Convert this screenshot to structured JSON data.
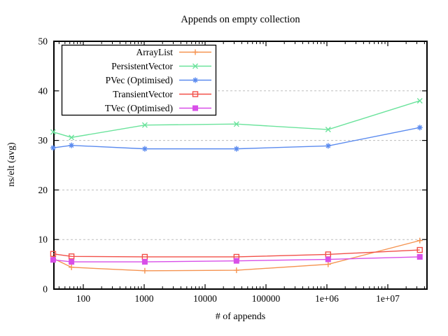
{
  "chart_data": {
    "type": "line",
    "title": "Appends on empty collection",
    "xlabel": "# of appends",
    "ylabel": "ns/elt (avg)",
    "x_scale": "log10",
    "xlim": [
      32,
      44000000
    ],
    "ylim": [
      0,
      50
    ],
    "grid": "horizontal-dashed",
    "grid_color": "#bdbdbd",
    "legend_position": "top-left",
    "x_major_ticks": [
      100,
      1000,
      10000,
      100000,
      1000000,
      10000000
    ],
    "x_tick_labels": [
      "100",
      "1000",
      "10000",
      "100000",
      "1e+06",
      "1e+07"
    ],
    "y_ticks": [
      0,
      10,
      20,
      30,
      40,
      50
    ],
    "y_tick_labels": [
      "0",
      "10",
      "20",
      "30",
      "40",
      "50"
    ],
    "x": [
      32,
      64,
      1024,
      32768,
      1048576,
      33554432
    ],
    "series": [
      {
        "name": "ArrayList",
        "color": "#f59350",
        "marker": "plus",
        "values": [
          6.2,
          4.4,
          3.7,
          3.8,
          5.0,
          9.8
        ]
      },
      {
        "name": "PersistentVector",
        "color": "#6be39c",
        "marker": "cross",
        "values": [
          31.7,
          30.6,
          33.1,
          33.3,
          32.2,
          38.0
        ]
      },
      {
        "name": "PVec (Optimised)",
        "color": "#5b8bef",
        "marker": "asterisk",
        "values": [
          28.5,
          29.0,
          28.3,
          28.3,
          28.9,
          32.6
        ]
      },
      {
        "name": "TransientVector",
        "color": "#f25049",
        "marker": "open-square",
        "values": [
          7.1,
          6.6,
          6.5,
          6.5,
          7.0,
          7.9
        ]
      },
      {
        "name": "TVec (Optimised)",
        "color": "#d84fe8",
        "marker": "filled-square",
        "values": [
          5.9,
          5.5,
          5.5,
          5.7,
          6.0,
          6.5
        ]
      }
    ]
  }
}
